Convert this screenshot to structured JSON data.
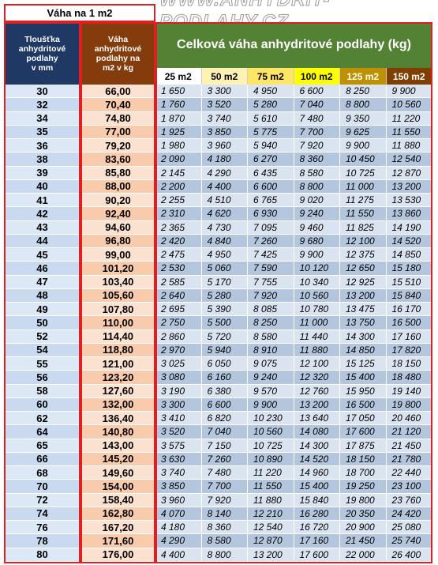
{
  "header": {
    "weight_label": "Váha na 1 m2",
    "website": "WWW.ANHYDRIT-PODLAHY.CZ"
  },
  "columns": {
    "thickness": "Tloušťka\nanhydritové\npodlahy\nv mm",
    "weight": "Váha\nanhydritové\npodlahy na\nm2 v kg"
  },
  "area_header": {
    "title": "Celková váha anhydritové podlahy (kg)",
    "areas": [
      "25 m2",
      "50 m2",
      "75 m2",
      "100 m2",
      "125 m2",
      "150 m2"
    ]
  },
  "table": {
    "rows": [
      [
        "30",
        "66,00",
        "1 650",
        "3 300",
        "4 950",
        "6 600",
        "8 250",
        "9 900"
      ],
      [
        "32",
        "70,40",
        "1 760",
        "3 520",
        "5 280",
        "7 040",
        "8 800",
        "10 560"
      ],
      [
        "34",
        "74,80",
        "1 870",
        "3 740",
        "5 610",
        "7 480",
        "9 350",
        "11 220"
      ],
      [
        "35",
        "77,00",
        "1 925",
        "3 850",
        "5 775",
        "7 700",
        "9 625",
        "11 550"
      ],
      [
        "36",
        "79,20",
        "1 980",
        "3 960",
        "5 940",
        "7 920",
        "9 900",
        "11 880"
      ],
      [
        "38",
        "83,60",
        "2 090",
        "4 180",
        "6 270",
        "8 360",
        "10 450",
        "12 540"
      ],
      [
        "39",
        "85,80",
        "2 145",
        "4 290",
        "6 435",
        "8 580",
        "10 725",
        "12 870"
      ],
      [
        "40",
        "88,00",
        "2 200",
        "4 400",
        "6 600",
        "8 800",
        "11 000",
        "13 200"
      ],
      [
        "41",
        "90,20",
        "2 255",
        "4 510",
        "6 765",
        "9 020",
        "11 275",
        "13 530"
      ],
      [
        "42",
        "92,40",
        "2 310",
        "4 620",
        "6 930",
        "9 240",
        "11 550",
        "13 860"
      ],
      [
        "43",
        "94,60",
        "2 365",
        "4 730",
        "7 095",
        "9 460",
        "11 825",
        "14 190"
      ],
      [
        "44",
        "96,80",
        "2 420",
        "4 840",
        "7 260",
        "9 680",
        "12 100",
        "14 520"
      ],
      [
        "45",
        "99,00",
        "2 475",
        "4 950",
        "7 425",
        "9 900",
        "12 375",
        "14 850"
      ],
      [
        "46",
        "101,20",
        "2 530",
        "5 060",
        "7 590",
        "10 120",
        "12 650",
        "15 180"
      ],
      [
        "47",
        "103,40",
        "2 585",
        "5 170",
        "7 755",
        "10 340",
        "12 925",
        "15 510"
      ],
      [
        "48",
        "105,60",
        "2 640",
        "5 280",
        "7 920",
        "10 560",
        "13 200",
        "15 840"
      ],
      [
        "49",
        "107,80",
        "2 695",
        "5 390",
        "8 085",
        "10 780",
        "13 475",
        "16 170"
      ],
      [
        "50",
        "110,00",
        "2 750",
        "5 500",
        "8 250",
        "11 000",
        "13 750",
        "16 500"
      ],
      [
        "52",
        "114,40",
        "2 860",
        "5 720",
        "8 580",
        "11 440",
        "14 300",
        "17 160"
      ],
      [
        "54",
        "118,80",
        "2 970",
        "5 940",
        "8 910",
        "11 880",
        "14 850",
        "17 820"
      ],
      [
        "55",
        "121,00",
        "3 025",
        "6 050",
        "9 075",
        "12 100",
        "15 125",
        "18 150"
      ],
      [
        "56",
        "123,20",
        "3 080",
        "6 160",
        "9 240",
        "12 320",
        "15 400",
        "18 480"
      ],
      [
        "58",
        "127,60",
        "3 190",
        "6 380",
        "9 570",
        "12 760",
        "15 950",
        "19 140"
      ],
      [
        "60",
        "132,00",
        "3 300",
        "6 600",
        "9 900",
        "13 200",
        "16 500",
        "19 800"
      ],
      [
        "62",
        "136,40",
        "3 410",
        "6 820",
        "10 230",
        "13 640",
        "17 050",
        "20 460"
      ],
      [
        "64",
        "140,80",
        "3 520",
        "7 040",
        "10 560",
        "14 080",
        "17 600",
        "21 120"
      ],
      [
        "65",
        "143,00",
        "3 575",
        "7 150",
        "10 725",
        "14 300",
        "17 875",
        "21 450"
      ],
      [
        "66",
        "145,20",
        "3 630",
        "7 260",
        "10 890",
        "14 520",
        "18 150",
        "21 780"
      ],
      [
        "68",
        "149,60",
        "3 740",
        "7 480",
        "11 220",
        "14 960",
        "18 700",
        "22 440"
      ],
      [
        "70",
        "154,00",
        "3 850",
        "7 700",
        "11 550",
        "15 400",
        "19 250",
        "23 100"
      ],
      [
        "72",
        "158,40",
        "3 960",
        "7 920",
        "11 880",
        "15 840",
        "19 800",
        "23 760"
      ],
      [
        "74",
        "162,80",
        "4 070",
        "8 140",
        "12 210",
        "16 280",
        "20 350",
        "24 420"
      ],
      [
        "76",
        "167,20",
        "4 180",
        "8 360",
        "12 540",
        "16 720",
        "20 900",
        "25 080"
      ],
      [
        "78",
        "171,60",
        "4 290",
        "8 580",
        "12 870",
        "17 160",
        "21 450",
        "25 740"
      ],
      [
        "80",
        "176,00",
        "4 400",
        "8 800",
        "13 200",
        "17 600",
        "22 000",
        "26 400"
      ]
    ]
  }
}
